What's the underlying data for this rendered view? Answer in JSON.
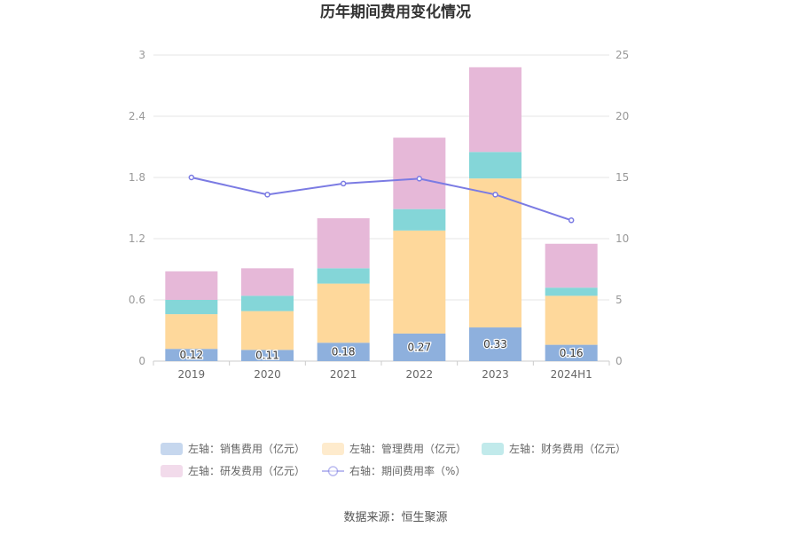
{
  "chart_data": {
    "type": "bar",
    "stacked": true,
    "title": "历年期间费用变化情况",
    "categories": [
      "2019",
      "2020",
      "2021",
      "2022",
      "2023",
      "2024H1"
    ],
    "left_axis": {
      "min": 0,
      "max": 3,
      "ticks": [
        "0",
        "0.6",
        "1.2",
        "1.8",
        "2.4",
        "3"
      ]
    },
    "right_axis": {
      "min": 0,
      "max": 25,
      "ticks": [
        "0",
        "5",
        "10",
        "15",
        "20",
        "25"
      ]
    },
    "series": [
      {
        "name": "左轴：销售费用（亿元）",
        "axis": "left",
        "color": "#8eb0dd",
        "values": [
          0.12,
          0.11,
          0.18,
          0.27,
          0.33,
          0.16
        ],
        "labels": [
          "0.12",
          "0.11",
          "0.18",
          "0.27",
          "0.33",
          "0.16"
        ]
      },
      {
        "name": "左轴：管理费用（亿元）",
        "axis": "left",
        "color": "#fed89b",
        "values": [
          0.34,
          0.38,
          0.58,
          1.01,
          1.46,
          0.48
        ]
      },
      {
        "name": "左轴：财务费用（亿元）",
        "axis": "left",
        "color": "#84d6d8",
        "values": [
          0.14,
          0.15,
          0.15,
          0.21,
          0.26,
          0.08
        ]
      },
      {
        "name": "左轴：研发费用（亿元）",
        "axis": "left",
        "color": "#e6b8d8",
        "values": [
          0.28,
          0.27,
          0.49,
          0.7,
          0.83,
          0.43
        ]
      },
      {
        "name": "右轴：期间费用率（%）",
        "axis": "right",
        "type": "line",
        "color": "#7b7be3",
        "values": [
          15.0,
          13.6,
          14.5,
          14.9,
          13.6,
          11.5
        ]
      }
    ],
    "legend_position": "bottom",
    "grid": true
  },
  "source": "数据来源：恒生聚源"
}
